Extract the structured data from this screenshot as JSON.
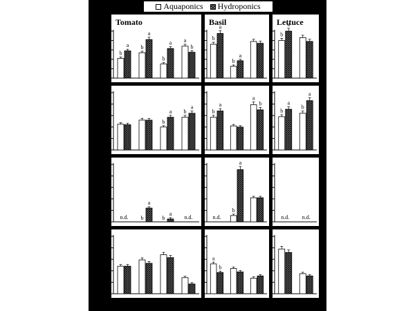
{
  "legend": {
    "aquaponics_label": "Aquaponics",
    "hydroponics_label": "Hydroponics"
  },
  "colors": {
    "background": "#000000",
    "panel": "#ffffff",
    "aquaponics_fill": "#ffffff",
    "hydroponics_fill": "#555555"
  },
  "chart_data": {
    "type": "bar",
    "layout": "4 rows x 3 crops grouped bar panels",
    "series": [
      {
        "name": "Aquaponics"
      },
      {
        "name": "Hydroponics"
      }
    ],
    "columns": [
      "Tomato",
      "Basil",
      "Lettuce"
    ],
    "axis_ticks_visible": false,
    "panels": [
      {
        "row": 0,
        "crop": "Tomato",
        "title": "Tomato",
        "ylim": [
          0,
          100
        ],
        "corner_label": "",
        "groups": [
          {
            "aquaponics": 42,
            "hydroponics": 58,
            "letters": [
              "b",
              "a"
            ]
          },
          {
            "aquaponics": 54,
            "hydroponics": 82,
            "letters": [
              "b",
              "a"
            ]
          },
          {
            "aquaponics": 30,
            "hydroponics": 63,
            "letters": [
              "b",
              "a"
            ]
          },
          {
            "aquaponics": 68,
            "hydroponics": 55,
            "letters": [
              "a",
              "b"
            ]
          }
        ]
      },
      {
        "row": 0,
        "crop": "Basil",
        "title": "Basil",
        "ylim": [
          0,
          100
        ],
        "corner_label": "",
        "groups": [
          {
            "aquaponics": 72,
            "hydroponics": 95,
            "letters": [
              "b",
              "a"
            ]
          },
          {
            "aquaponics": 25,
            "hydroponics": 37,
            "letters": [
              "b",
              "a"
            ]
          },
          {
            "aquaponics": 78,
            "hydroponics": 74,
            "letters": [
              "",
              ""
            ]
          }
        ]
      },
      {
        "row": 0,
        "crop": "Lettuce",
        "title": "Lettuce",
        "ylim": [
          0,
          100
        ],
        "corner_label": "",
        "groups": [
          {
            "aquaponics": 80,
            "hydroponics": 100,
            "letters": [
              "b",
              "a"
            ]
          },
          {
            "aquaponics": 86,
            "hydroponics": 78,
            "letters": [
              "",
              ""
            ]
          }
        ]
      },
      {
        "row": 1,
        "crop": "Tomato",
        "title": "",
        "ylim": [
          0,
          100
        ],
        "corner_label": "",
        "groups": [
          {
            "aquaponics": 45,
            "hydroponics": 44,
            "letters": [
              "",
              ""
            ]
          },
          {
            "aquaponics": 52,
            "hydroponics": 52,
            "letters": [
              "",
              ""
            ]
          },
          {
            "aquaponics": 40,
            "hydroponics": 57,
            "letters": [
              "b",
              "a"
            ]
          },
          {
            "aquaponics": 57,
            "hydroponics": 64,
            "letters": [
              "b",
              "a"
            ]
          }
        ]
      },
      {
        "row": 1,
        "crop": "Basil",
        "title": "",
        "ylim": [
          0,
          100
        ],
        "corner_label": "",
        "groups": [
          {
            "aquaponics": 57,
            "hydroponics": 68,
            "letters": [
              "b",
              "a"
            ]
          },
          {
            "aquaponics": 42,
            "hydroponics": 40,
            "letters": [
              "",
              ""
            ]
          },
          {
            "aquaponics": 79,
            "hydroponics": 70,
            "letters": [
              "a",
              "b"
            ]
          }
        ]
      },
      {
        "row": 1,
        "crop": "Lettuce",
        "title": "",
        "ylim": [
          0,
          100
        ],
        "corner_label": "",
        "groups": [
          {
            "aquaponics": 58,
            "hydroponics": 71,
            "letters": [
              "b",
              "a"
            ]
          },
          {
            "aquaponics": 64,
            "hydroponics": 86,
            "letters": [
              "b",
              "a"
            ]
          }
        ]
      },
      {
        "row": 2,
        "crop": "Tomato",
        "title": "",
        "ylim": [
          0,
          100
        ],
        "corner_label": "",
        "groups": [
          {
            "aquaponics": null,
            "hydroponics": null,
            "letters": [
              "",
              ""
            ],
            "note": "n.d."
          },
          {
            "aquaponics": 0,
            "hydroponics": 24,
            "letters": [
              "b",
              "a"
            ]
          },
          {
            "aquaponics": 0,
            "hydroponics": 5,
            "letters": [
              "b",
              "a"
            ]
          },
          {
            "aquaponics": null,
            "hydroponics": null,
            "letters": [
              "",
              ""
            ],
            "note": "n.d."
          }
        ]
      },
      {
        "row": 2,
        "crop": "Basil",
        "title": "",
        "ylim": [
          0,
          100
        ],
        "corner_label": "",
        "groups": [
          {
            "aquaponics": null,
            "hydroponics": null,
            "letters": [
              "",
              ""
            ],
            "note": "n.d."
          },
          {
            "aquaponics": 11,
            "hydroponics": 91,
            "letters": [
              "b",
              "a"
            ]
          },
          {
            "aquaponics": 42,
            "hydroponics": 42,
            "letters": [
              "",
              ""
            ]
          }
        ]
      },
      {
        "row": 2,
        "crop": "Lettuce",
        "title": "",
        "ylim": [
          0,
          100
        ],
        "corner_label": "",
        "groups": [
          {
            "aquaponics": null,
            "hydroponics": null,
            "letters": [
              "",
              ""
            ],
            "note": "n.d."
          },
          {
            "aquaponics": null,
            "hydroponics": null,
            "letters": [
              "",
              ""
            ],
            "note": "n.d."
          }
        ]
      },
      {
        "row": 3,
        "crop": "Tomato",
        "title": "",
        "ylim": [
          0,
          100
        ],
        "corner_label": "",
        "groups": [
          {
            "aquaponics": 48,
            "hydroponics": 48,
            "letters": [
              "",
              ""
            ]
          },
          {
            "aquaponics": 59,
            "hydroponics": 53,
            "letters": [
              "",
              ""
            ]
          },
          {
            "aquaponics": 68,
            "hydroponics": 63,
            "letters": [
              "",
              ""
            ]
          },
          {
            "aquaponics": 28,
            "hydroponics": 17,
            "letters": [
              "",
              ""
            ]
          }
        ]
      },
      {
        "row": 3,
        "crop": "Basil",
        "title": "",
        "ylim": [
          0,
          100
        ],
        "corner_label": "",
        "groups": [
          {
            "aquaponics": 52,
            "hydroponics": 37,
            "letters": [
              "a",
              "b"
            ]
          },
          {
            "aquaponics": 44,
            "hydroponics": 38,
            "letters": [
              "",
              ""
            ]
          },
          {
            "aquaponics": 27,
            "hydroponics": 31,
            "letters": [
              "",
              ""
            ]
          }
        ]
      },
      {
        "row": 3,
        "crop": "Lettuce",
        "title": "",
        "ylim": [
          0,
          100
        ],
        "corner_label": "",
        "groups": [
          {
            "aquaponics": 78,
            "hydroponics": 72,
            "letters": [
              "",
              ""
            ]
          },
          {
            "aquaponics": 35,
            "hydroponics": 31,
            "letters": [
              "",
              ""
            ]
          }
        ]
      }
    ]
  }
}
